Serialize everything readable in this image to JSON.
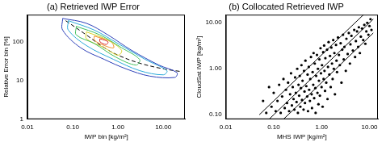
{
  "chart_data": [
    {
      "type": "line",
      "title": "(a) Retrieved IWP Error",
      "x_label": "IWP bin [kg/m²]",
      "y_label": "Relative Error bin [%]",
      "log": true,
      "grid": false,
      "xlim": [
        0.01,
        30
      ],
      "ylim": [
        1,
        500
      ],
      "xticks": [
        0.01,
        {
          "value": 0.1,
          "label": "0.10"
        },
        {
          "value": 1,
          "label": "1.00"
        },
        {
          "value": 10,
          "label": "10.00"
        }
      ],
      "yticks": [
        1,
        10,
        100
      ],
      "series": [
        {
          "color": "#2c3fb8",
          "points": [
            [
              0.06,
              400
            ],
            [
              0.2,
              300
            ],
            [
              0.6,
              150
            ],
            [
              2,
              60
            ],
            [
              8,
              25
            ],
            [
              20,
              16
            ],
            [
              18,
              12
            ],
            [
              5,
              13
            ],
            [
              1.5,
              20
            ],
            [
              0.5,
              35
            ],
            [
              0.15,
              70
            ],
            [
              0.06,
              200
            ],
            [
              0.06,
              400
            ]
          ]
        },
        {
          "color": "#29a9d9",
          "points": [
            [
              0.08,
              350
            ],
            [
              0.3,
              200
            ],
            [
              1,
              90
            ],
            [
              4,
              35
            ],
            [
              12,
              18
            ],
            [
              10,
              14
            ],
            [
              3,
              18
            ],
            [
              0.8,
              35
            ],
            [
              0.2,
              80
            ],
            [
              0.08,
              200
            ],
            [
              0.08,
              350
            ]
          ]
        },
        {
          "color": "#3fbf5a",
          "points": [
            [
              0.12,
              250
            ],
            [
              0.4,
              150
            ],
            [
              1.2,
              70
            ],
            [
              3,
              35
            ],
            [
              2.5,
              25
            ],
            [
              0.9,
              40
            ],
            [
              0.3,
              90
            ],
            [
              0.12,
              150
            ],
            [
              0.12,
              250
            ]
          ]
        },
        {
          "color": "#d9d12a",
          "points": [
            [
              0.2,
              180
            ],
            [
              0.6,
              110
            ],
            [
              1.2,
              60
            ],
            [
              1,
              45
            ],
            [
              0.5,
              70
            ],
            [
              0.2,
              120
            ],
            [
              0.2,
              180
            ]
          ]
        },
        {
          "color": "#f08a24",
          "points": [
            [
              0.3,
              140
            ],
            [
              0.7,
              100
            ],
            [
              0.8,
              70
            ],
            [
              0.5,
              80
            ],
            [
              0.3,
              110
            ],
            [
              0.3,
              140
            ]
          ]
        },
        {
          "color": "#d92a2a",
          "points": [
            [
              0.4,
              120
            ],
            [
              0.6,
              100
            ],
            [
              0.55,
              85
            ],
            [
              0.4,
              100
            ],
            [
              0.4,
              120
            ]
          ]
        },
        {
          "color": "#000000",
          "line_style": "dashed",
          "points": [
            [
              0.07,
              350
            ],
            [
              0.2,
              150
            ],
            [
              0.5,
              70
            ],
            [
              1,
              45
            ],
            [
              3,
              28
            ],
            [
              10,
              20
            ],
            [
              25,
              17
            ]
          ]
        }
      ]
    },
    {
      "type": "scatter",
      "title": "(b) Collocated Retrieved IWP",
      "x_label": "MHS IWP [kg/m²]",
      "y_label": "CloudSat IWP [kg/m²]",
      "log": true,
      "grid": false,
      "xlim": [
        0.01,
        15
      ],
      "ylim": [
        0.08,
        15
      ],
      "xticks": [
        0.01,
        {
          "value": 0.1,
          "label": "0.10"
        },
        {
          "value": 1,
          "label": "1.00"
        },
        {
          "value": 10,
          "label": "10.00"
        }
      ],
      "yticks": [
        {
          "value": 0.1,
          "label": "0.10"
        },
        {
          "value": 1,
          "label": "1.00"
        },
        {
          "value": 10,
          "label": "10.00"
        }
      ],
      "series": [
        {
          "color": "#000000",
          "marker": "circle",
          "points": [
            [
              0.09,
              0.15
            ],
            [
              0.1,
              0.3
            ],
            [
              0.11,
              0.12
            ],
            [
              0.12,
              0.2
            ],
            [
              0.13,
              0.45
            ],
            [
              0.14,
              0.11
            ],
            [
              0.15,
              0.25
            ],
            [
              0.16,
              0.6
            ],
            [
              0.17,
              0.14
            ],
            [
              0.18,
              0.35
            ],
            [
              0.19,
              0.18
            ],
            [
              0.2,
              0.5
            ],
            [
              0.21,
              0.12
            ],
            [
              0.22,
              0.28
            ],
            [
              0.23,
              0.8
            ],
            [
              0.24,
              0.16
            ],
            [
              0.25,
              0.4
            ],
            [
              0.26,
              0.22
            ],
            [
              0.27,
              0.13
            ],
            [
              0.28,
              0.65
            ],
            [
              0.29,
              0.3
            ],
            [
              0.3,
              0.19
            ],
            [
              0.31,
              1.0
            ],
            [
              0.32,
              0.11
            ],
            [
              0.33,
              0.45
            ],
            [
              0.34,
              0.26
            ],
            [
              0.35,
              0.7
            ],
            [
              0.36,
              0.15
            ],
            [
              0.37,
              0.38
            ],
            [
              0.38,
              1.2
            ],
            [
              0.39,
              0.21
            ],
            [
              0.4,
              0.55
            ],
            [
              0.42,
              0.13
            ],
            [
              0.43,
              0.9
            ],
            [
              0.44,
              0.32
            ],
            [
              0.45,
              0.18
            ],
            [
              0.46,
              1.5
            ],
            [
              0.48,
              0.42
            ],
            [
              0.5,
              0.25
            ],
            [
              0.51,
              0.75
            ],
            [
              0.52,
              0.12
            ],
            [
              0.54,
              1.1
            ],
            [
              0.55,
              0.35
            ],
            [
              0.57,
              0.2
            ],
            [
              0.58,
              0.6
            ],
            [
              0.6,
              1.8
            ],
            [
              0.62,
              0.28
            ],
            [
              0.63,
              0.14
            ],
            [
              0.65,
              0.85
            ],
            [
              0.67,
              0.45
            ],
            [
              0.68,
              2.2
            ],
            [
              0.7,
              0.23
            ],
            [
              0.72,
              1.3
            ],
            [
              0.74,
              0.38
            ],
            [
              0.75,
              0.11
            ],
            [
              0.77,
              0.7
            ],
            [
              0.8,
              2.0
            ],
            [
              0.82,
              0.3
            ],
            [
              0.84,
              1.0
            ],
            [
              0.86,
              0.17
            ],
            [
              0.88,
              0.55
            ],
            [
              0.9,
              1.6
            ],
            [
              0.92,
              0.26
            ],
            [
              0.95,
              2.8
            ],
            [
              0.97,
              0.8
            ],
            [
              1.0,
              0.4
            ],
            [
              1.02,
              1.2
            ],
            [
              1.05,
              0.15
            ],
            [
              1.08,
              2.3
            ],
            [
              1.1,
              0.6
            ],
            [
              1.13,
              3.2
            ],
            [
              1.15,
              0.9
            ],
            [
              1.18,
              0.33
            ],
            [
              1.2,
              1.7
            ],
            [
              1.25,
              0.5
            ],
            [
              1.3,
              2.6
            ],
            [
              1.33,
              0.22
            ],
            [
              1.36,
              1.1
            ],
            [
              1.4,
              3.8
            ],
            [
              1.45,
              0.75
            ],
            [
              1.5,
              1.9
            ],
            [
              1.55,
              0.4
            ],
            [
              1.6,
              2.9
            ],
            [
              1.65,
              1.3
            ],
            [
              1.7,
              0.6
            ],
            [
              1.75,
              4.2
            ],
            [
              1.8,
              1.0
            ],
            [
              1.85,
              2.2
            ],
            [
              1.9,
              0.28
            ],
            [
              2.0,
              3.3
            ],
            [
              2.05,
              1.5
            ],
            [
              2.1,
              0.85
            ],
            [
              2.2,
              4.8
            ],
            [
              2.3,
              2.0
            ],
            [
              2.4,
              1.2
            ],
            [
              2.5,
              3.6
            ],
            [
              2.6,
              0.5
            ],
            [
              2.7,
              2.6
            ],
            [
              2.8,
              5.5
            ],
            [
              2.9,
              1.6
            ],
            [
              3.0,
              3.0
            ],
            [
              3.2,
              0.9
            ],
            [
              3.3,
              4.5
            ],
            [
              3.5,
              2.1
            ],
            [
              3.7,
              6.0
            ],
            [
              3.9,
              1.3
            ],
            [
              4.0,
              3.4
            ],
            [
              4.2,
              5.2
            ],
            [
              4.5,
              2.5
            ],
            [
              4.8,
              7.0
            ],
            [
              5.0,
              1.8
            ],
            [
              5.2,
              4.0
            ],
            [
              5.5,
              6.5
            ],
            [
              5.8,
              3.0
            ],
            [
              6.0,
              8.0
            ],
            [
              6.3,
              2.2
            ],
            [
              6.6,
              5.0
            ],
            [
              7.0,
              7.5
            ],
            [
              7.4,
              4.2
            ],
            [
              7.8,
              9.0
            ],
            [
              8.2,
              3.5
            ],
            [
              8.6,
              6.5
            ],
            [
              9.0,
              10.0
            ],
            [
              9.5,
              5.5
            ],
            [
              10.0,
              8.5
            ],
            [
              10.5,
              12.0
            ],
            [
              11.0,
              7.0
            ],
            [
              0.06,
              0.2
            ],
            [
              0.07,
              0.11
            ],
            [
              0.08,
              0.4
            ]
          ]
        },
        {
          "color": "#000000",
          "type": "line",
          "points": [
            [
              0.05,
              0.1
            ],
            [
              12,
              24
            ]
          ]
        },
        {
          "color": "#000000",
          "type": "line",
          "points": [
            [
              0.05,
              0.05
            ],
            [
              12,
              12
            ]
          ]
        },
        {
          "color": "#000000",
          "type": "line",
          "points": [
            [
              0.05,
              0.025
            ],
            [
              12,
              6
            ]
          ]
        }
      ]
    }
  ]
}
